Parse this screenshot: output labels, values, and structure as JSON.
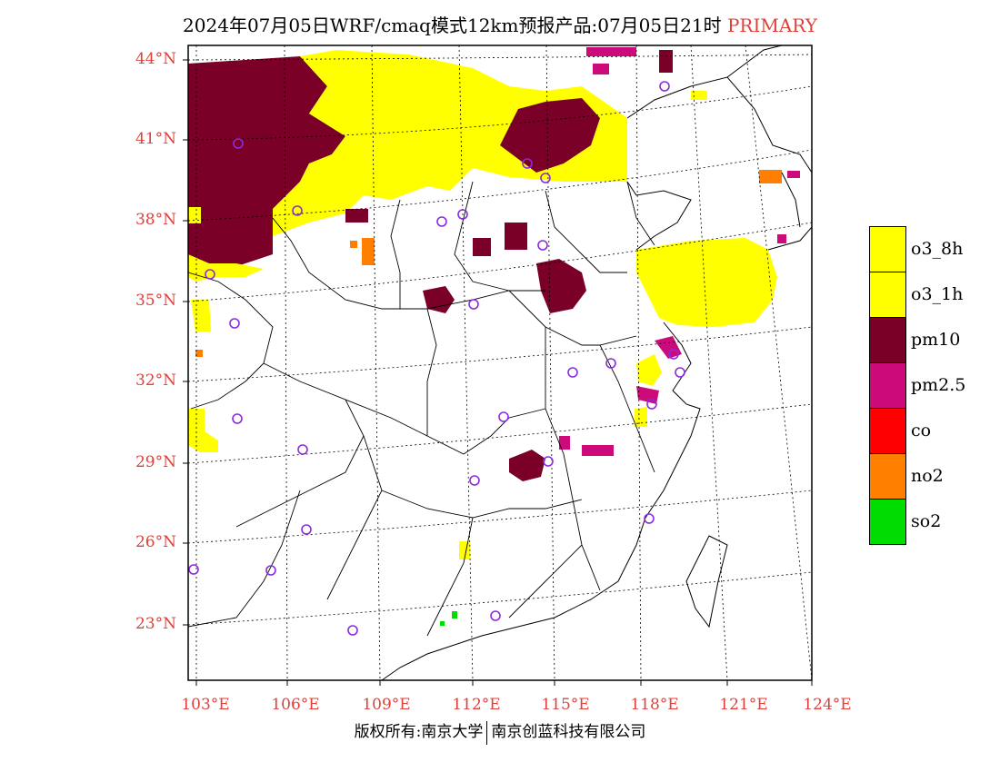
{
  "title": {
    "main": "2024年07月05日WRF/cmaq模式12km预报产品:07月05日21时",
    "tag": "PRIMARY"
  },
  "axes": {
    "lat_labels": [
      "44°N",
      "41°N",
      "38°N",
      "35°N",
      "32°N",
      "29°N",
      "26°N",
      "23°N"
    ],
    "lon_labels": [
      "103°E",
      "106°E",
      "109°E",
      "112°E",
      "115°E",
      "118°E",
      "121°E",
      "124°E"
    ]
  },
  "legend": [
    {
      "label": "o3_8h",
      "color": "#ffff00"
    },
    {
      "label": "o3_1h",
      "color": "#ffff00"
    },
    {
      "label": "pm10",
      "color": "#7a0028"
    },
    {
      "label": "pm2.5",
      "color": "#cc0a7a"
    },
    {
      "label": "co",
      "color": "#ff0000"
    },
    {
      "label": "no2",
      "color": "#ff7f00"
    },
    {
      "label": "so2",
      "color": "#00dd00"
    }
  ],
  "footer": {
    "left": "版权所有:南京大学",
    "right": "南京创蓝科技有限公司"
  }
}
